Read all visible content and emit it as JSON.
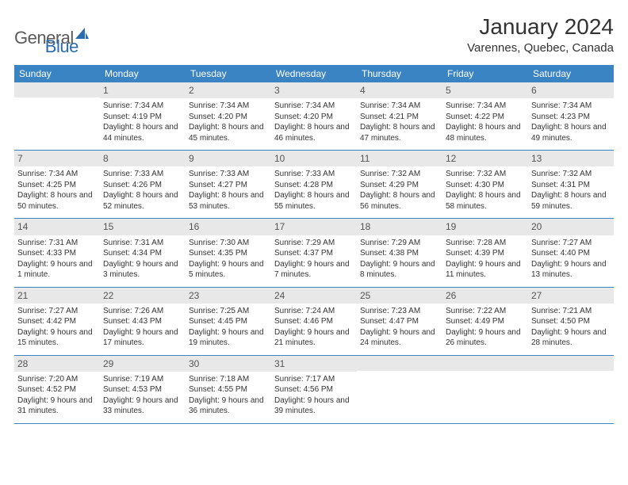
{
  "logo": {
    "word1": "General",
    "word2": "Blue"
  },
  "title": "January 2024",
  "location": "Varennes, Quebec, Canada",
  "colors": {
    "header_bg": "#3b84c4",
    "header_text": "#ffffff",
    "daynum_bg": "#e8e8e8",
    "border": "#3b84c4",
    "logo_gray": "#5a5a5a",
    "logo_blue": "#2a6baf"
  },
  "day_labels": [
    "Sunday",
    "Monday",
    "Tuesday",
    "Wednesday",
    "Thursday",
    "Friday",
    "Saturday"
  ],
  "weeks": [
    [
      {
        "n": "",
        "sr": "",
        "ss": "",
        "dl": ""
      },
      {
        "n": "1",
        "sr": "Sunrise: 7:34 AM",
        "ss": "Sunset: 4:19 PM",
        "dl": "Daylight: 8 hours and 44 minutes."
      },
      {
        "n": "2",
        "sr": "Sunrise: 7:34 AM",
        "ss": "Sunset: 4:20 PM",
        "dl": "Daylight: 8 hours and 45 minutes."
      },
      {
        "n": "3",
        "sr": "Sunrise: 7:34 AM",
        "ss": "Sunset: 4:20 PM",
        "dl": "Daylight: 8 hours and 46 minutes."
      },
      {
        "n": "4",
        "sr": "Sunrise: 7:34 AM",
        "ss": "Sunset: 4:21 PM",
        "dl": "Daylight: 8 hours and 47 minutes."
      },
      {
        "n": "5",
        "sr": "Sunrise: 7:34 AM",
        "ss": "Sunset: 4:22 PM",
        "dl": "Daylight: 8 hours and 48 minutes."
      },
      {
        "n": "6",
        "sr": "Sunrise: 7:34 AM",
        "ss": "Sunset: 4:23 PM",
        "dl": "Daylight: 8 hours and 49 minutes."
      }
    ],
    [
      {
        "n": "7",
        "sr": "Sunrise: 7:34 AM",
        "ss": "Sunset: 4:25 PM",
        "dl": "Daylight: 8 hours and 50 minutes."
      },
      {
        "n": "8",
        "sr": "Sunrise: 7:33 AM",
        "ss": "Sunset: 4:26 PM",
        "dl": "Daylight: 8 hours and 52 minutes."
      },
      {
        "n": "9",
        "sr": "Sunrise: 7:33 AM",
        "ss": "Sunset: 4:27 PM",
        "dl": "Daylight: 8 hours and 53 minutes."
      },
      {
        "n": "10",
        "sr": "Sunrise: 7:33 AM",
        "ss": "Sunset: 4:28 PM",
        "dl": "Daylight: 8 hours and 55 minutes."
      },
      {
        "n": "11",
        "sr": "Sunrise: 7:32 AM",
        "ss": "Sunset: 4:29 PM",
        "dl": "Daylight: 8 hours and 56 minutes."
      },
      {
        "n": "12",
        "sr": "Sunrise: 7:32 AM",
        "ss": "Sunset: 4:30 PM",
        "dl": "Daylight: 8 hours and 58 minutes."
      },
      {
        "n": "13",
        "sr": "Sunrise: 7:32 AM",
        "ss": "Sunset: 4:31 PM",
        "dl": "Daylight: 8 hours and 59 minutes."
      }
    ],
    [
      {
        "n": "14",
        "sr": "Sunrise: 7:31 AM",
        "ss": "Sunset: 4:33 PM",
        "dl": "Daylight: 9 hours and 1 minute."
      },
      {
        "n": "15",
        "sr": "Sunrise: 7:31 AM",
        "ss": "Sunset: 4:34 PM",
        "dl": "Daylight: 9 hours and 3 minutes."
      },
      {
        "n": "16",
        "sr": "Sunrise: 7:30 AM",
        "ss": "Sunset: 4:35 PM",
        "dl": "Daylight: 9 hours and 5 minutes."
      },
      {
        "n": "17",
        "sr": "Sunrise: 7:29 AM",
        "ss": "Sunset: 4:37 PM",
        "dl": "Daylight: 9 hours and 7 minutes."
      },
      {
        "n": "18",
        "sr": "Sunrise: 7:29 AM",
        "ss": "Sunset: 4:38 PM",
        "dl": "Daylight: 9 hours and 8 minutes."
      },
      {
        "n": "19",
        "sr": "Sunrise: 7:28 AM",
        "ss": "Sunset: 4:39 PM",
        "dl": "Daylight: 9 hours and 11 minutes."
      },
      {
        "n": "20",
        "sr": "Sunrise: 7:27 AM",
        "ss": "Sunset: 4:40 PM",
        "dl": "Daylight: 9 hours and 13 minutes."
      }
    ],
    [
      {
        "n": "21",
        "sr": "Sunrise: 7:27 AM",
        "ss": "Sunset: 4:42 PM",
        "dl": "Daylight: 9 hours and 15 minutes."
      },
      {
        "n": "22",
        "sr": "Sunrise: 7:26 AM",
        "ss": "Sunset: 4:43 PM",
        "dl": "Daylight: 9 hours and 17 minutes."
      },
      {
        "n": "23",
        "sr": "Sunrise: 7:25 AM",
        "ss": "Sunset: 4:45 PM",
        "dl": "Daylight: 9 hours and 19 minutes."
      },
      {
        "n": "24",
        "sr": "Sunrise: 7:24 AM",
        "ss": "Sunset: 4:46 PM",
        "dl": "Daylight: 9 hours and 21 minutes."
      },
      {
        "n": "25",
        "sr": "Sunrise: 7:23 AM",
        "ss": "Sunset: 4:47 PM",
        "dl": "Daylight: 9 hours and 24 minutes."
      },
      {
        "n": "26",
        "sr": "Sunrise: 7:22 AM",
        "ss": "Sunset: 4:49 PM",
        "dl": "Daylight: 9 hours and 26 minutes."
      },
      {
        "n": "27",
        "sr": "Sunrise: 7:21 AM",
        "ss": "Sunset: 4:50 PM",
        "dl": "Daylight: 9 hours and 28 minutes."
      }
    ],
    [
      {
        "n": "28",
        "sr": "Sunrise: 7:20 AM",
        "ss": "Sunset: 4:52 PM",
        "dl": "Daylight: 9 hours and 31 minutes."
      },
      {
        "n": "29",
        "sr": "Sunrise: 7:19 AM",
        "ss": "Sunset: 4:53 PM",
        "dl": "Daylight: 9 hours and 33 minutes."
      },
      {
        "n": "30",
        "sr": "Sunrise: 7:18 AM",
        "ss": "Sunset: 4:55 PM",
        "dl": "Daylight: 9 hours and 36 minutes."
      },
      {
        "n": "31",
        "sr": "Sunrise: 7:17 AM",
        "ss": "Sunset: 4:56 PM",
        "dl": "Daylight: 9 hours and 39 minutes."
      },
      {
        "n": "",
        "sr": "",
        "ss": "",
        "dl": ""
      },
      {
        "n": "",
        "sr": "",
        "ss": "",
        "dl": ""
      },
      {
        "n": "",
        "sr": "",
        "ss": "",
        "dl": ""
      }
    ]
  ]
}
